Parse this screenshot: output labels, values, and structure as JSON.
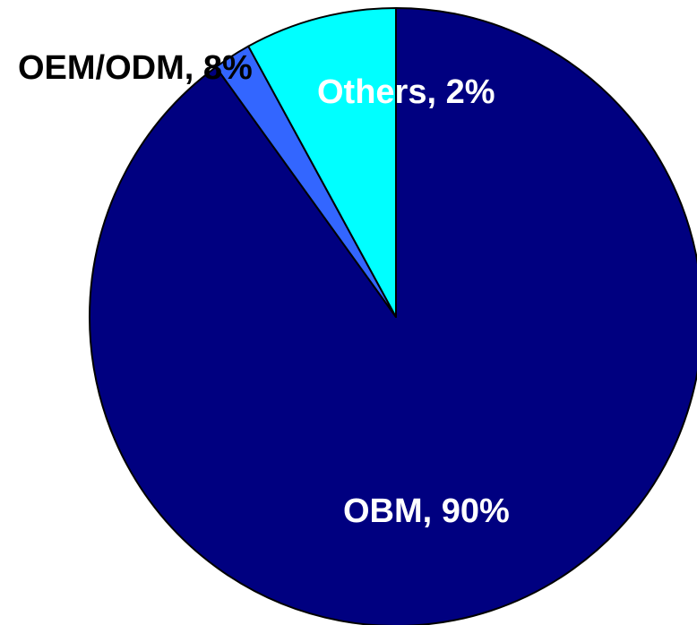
{
  "chart_data": {
    "type": "pie",
    "title": "",
    "start_angle_deg": 0,
    "direction": "clockwise",
    "slices": [
      {
        "name": "OBM",
        "value": 90,
        "label": "OBM, 90%",
        "color": "#000080",
        "label_color": "#ffffff"
      },
      {
        "name": "Others",
        "value": 2,
        "label": "Others, 2%",
        "color": "#3366ff",
        "label_color": "#ffffff"
      },
      {
        "name": "OEM/ODM",
        "value": 8,
        "label": "OEM/ODM, 8%",
        "color": "#00ffff",
        "label_color": "#000000"
      }
    ],
    "legend": "none",
    "outline_color": "#000000"
  }
}
